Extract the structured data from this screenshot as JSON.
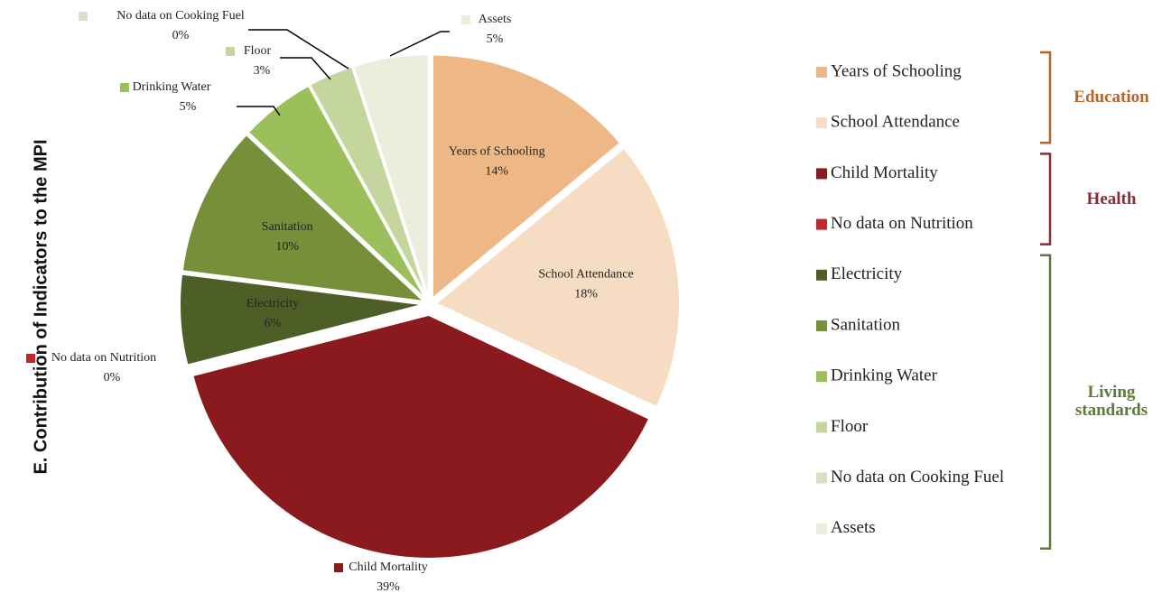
{
  "chart_data": {
    "type": "pie",
    "title": "E. Contribution of Indicators to the MPI",
    "categories": [
      "Years of Schooling",
      "School Attendance",
      "Child Mortality",
      "No data on Nutrition",
      "Electricity",
      "Sanitation",
      "Drinking Water",
      "Floor",
      "No data on Cooking Fuel",
      "Assets"
    ],
    "values": [
      14,
      18,
      39,
      0,
      6,
      10,
      5,
      3,
      0,
      5
    ],
    "value_labels": [
      "14%",
      "18%",
      "39%",
      "0%",
      "6%",
      "10%",
      "5%",
      "3%",
      "0%",
      "5%"
    ],
    "colors": [
      "#EDB886",
      "#F5DCC2",
      "#8B1A1F",
      "#C0282E",
      "#4E5E27",
      "#76903A",
      "#9BBF5A",
      "#C4D59E",
      "#D7E3C0",
      "#EBEEDD"
    ],
    "legend": "right",
    "groups": [
      {
        "name": "Education",
        "color": "#B5652A",
        "categories": [
          "Years of Schooling",
          "School Attendance"
        ]
      },
      {
        "name": "Health",
        "color": "#8E2A34",
        "categories": [
          "Child Mortality",
          "No data on Nutrition"
        ]
      },
      {
        "name": "Living standards",
        "color": "#5E7A3A",
        "categories": [
          "Electricity",
          "Sanitation",
          "Drinking Water",
          "Floor",
          "No data on Cooking Fuel",
          "Assets"
        ]
      }
    ]
  }
}
